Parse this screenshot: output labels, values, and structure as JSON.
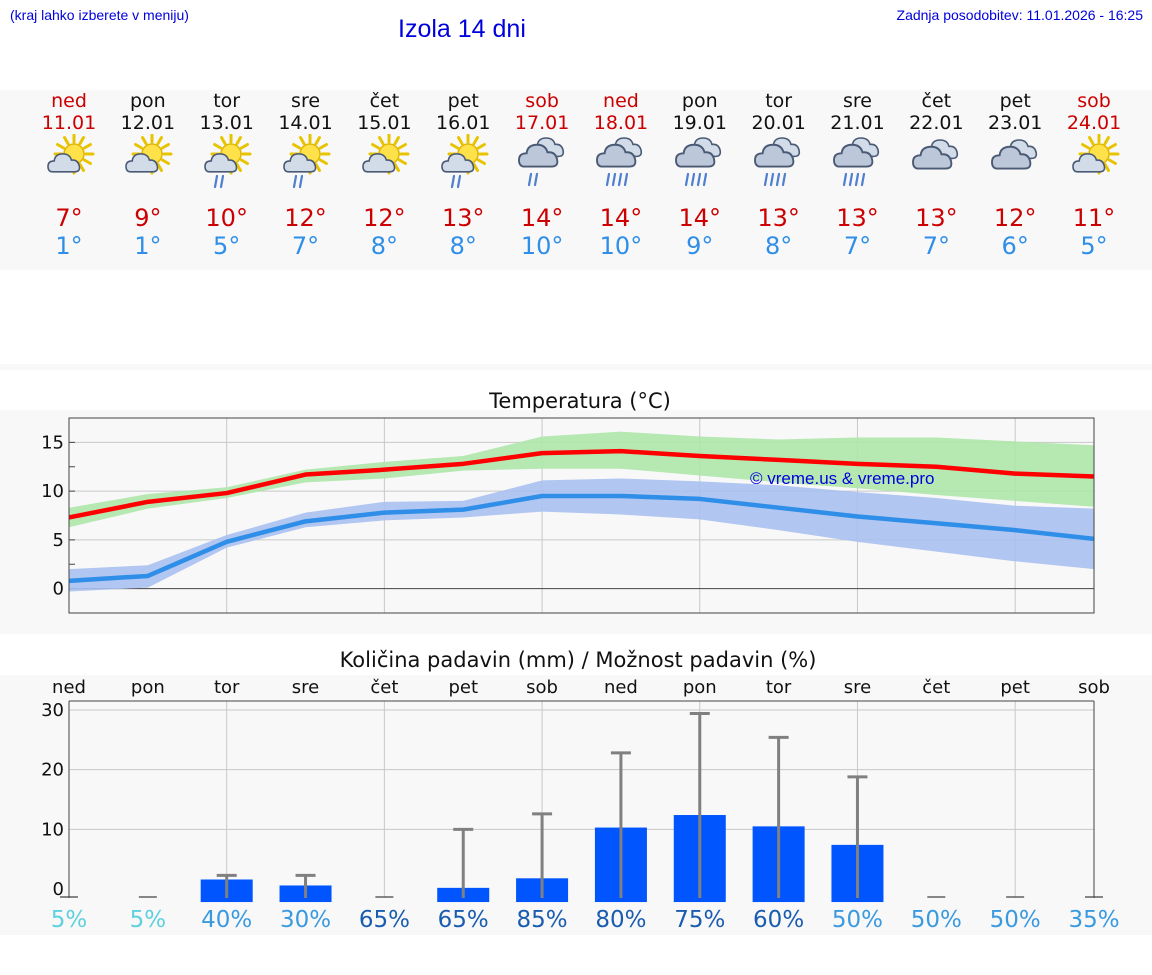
{
  "header": {
    "hint": "(kraj lahko izberete v meniju)",
    "title": "Izola 14 dni",
    "updated": "Zadnja posodobitev: 11.01.2026 - 16:25"
  },
  "colors": {
    "weekday": "#111111",
    "weekend": "#cc0000",
    "max_temp": "#ff0000",
    "min_temp": "#2e8ee8",
    "max_band": "#aee6aa",
    "min_band": "#a9c0f0",
    "precip_bar": "#0055ff",
    "error_bar": "#808080"
  },
  "days": [
    {
      "name": "ned",
      "date": "11.01",
      "weekend": true,
      "icon": "sun-cloud-icon",
      "max": "7°",
      "min": "1°"
    },
    {
      "name": "pon",
      "date": "12.01",
      "weekend": false,
      "icon": "sun-cloud-icon",
      "max": "9°",
      "min": "1°"
    },
    {
      "name": "tor",
      "date": "13.01",
      "weekend": false,
      "icon": "sun-cloud-rain-icon",
      "max": "10°",
      "min": "5°"
    },
    {
      "name": "sre",
      "date": "14.01",
      "weekend": false,
      "icon": "sun-cloud-rain-icon",
      "max": "12°",
      "min": "7°"
    },
    {
      "name": "čet",
      "date": "15.01",
      "weekend": false,
      "icon": "sun-cloud-icon",
      "max": "12°",
      "min": "8°"
    },
    {
      "name": "pet",
      "date": "16.01",
      "weekend": false,
      "icon": "sun-cloud-rain-icon",
      "max": "13°",
      "min": "8°"
    },
    {
      "name": "sob",
      "date": "17.01",
      "weekend": true,
      "icon": "cloud-rain-icon",
      "max": "14°",
      "min": "10°"
    },
    {
      "name": "ned",
      "date": "18.01",
      "weekend": true,
      "icon": "cloud-heavy-rain-icon",
      "max": "14°",
      "min": "10°"
    },
    {
      "name": "pon",
      "date": "19.01",
      "weekend": false,
      "icon": "cloud-heavy-rain-icon",
      "max": "14°",
      "min": "9°"
    },
    {
      "name": "tor",
      "date": "20.01",
      "weekend": false,
      "icon": "cloud-heavy-rain-icon",
      "max": "13°",
      "min": "8°"
    },
    {
      "name": "sre",
      "date": "21.01",
      "weekend": false,
      "icon": "cloud-heavy-rain-icon",
      "max": "13°",
      "min": "7°"
    },
    {
      "name": "čet",
      "date": "22.01",
      "weekend": false,
      "icon": "cloud-icon",
      "max": "13°",
      "min": "7°"
    },
    {
      "name": "pet",
      "date": "23.01",
      "weekend": false,
      "icon": "cloud-icon",
      "max": "12°",
      "min": "6°"
    },
    {
      "name": "sob",
      "date": "24.01",
      "weekend": true,
      "icon": "sun-cloud-icon",
      "max": "11°",
      "min": "5°"
    }
  ],
  "chart_data": [
    {
      "type": "line",
      "title": "Temperatura (°C)",
      "ylim": [
        -2.5,
        17.5
      ],
      "yticks": [
        0,
        5,
        10,
        15
      ],
      "watermark": "© vreme.us & vreme.pro",
      "x": [
        0,
        1,
        2,
        3,
        4,
        5,
        6,
        7,
        8,
        9,
        10,
        11,
        12,
        13
      ],
      "series": [
        {
          "name": "max",
          "values": [
            7.3,
            8.9,
            9.8,
            11.7,
            12.2,
            12.8,
            13.9,
            14.1,
            13.6,
            13.2,
            12.8,
            12.5,
            11.8,
            11.5
          ],
          "band_low": [
            6.3,
            8.2,
            9.3,
            10.9,
            11.3,
            12.1,
            12.3,
            12.3,
            11.6,
            10.9,
            10.3,
            9.6,
            9.0,
            8.4
          ],
          "band_high": [
            8.3,
            9.7,
            10.4,
            12.2,
            13.0,
            13.6,
            15.6,
            16.1,
            15.6,
            15.3,
            15.5,
            15.5,
            15.1,
            14.7
          ]
        },
        {
          "name": "min",
          "values": [
            0.8,
            1.3,
            4.8,
            6.9,
            7.8,
            8.1,
            9.5,
            9.5,
            9.2,
            8.3,
            7.4,
            6.7,
            6.0,
            5.1
          ],
          "band_low": [
            -0.3,
            0.1,
            4.2,
            6.3,
            7.0,
            7.3,
            7.9,
            7.6,
            7.1,
            6.0,
            4.8,
            3.8,
            2.8,
            2.0
          ],
          "band_high": [
            2.0,
            2.4,
            5.5,
            7.8,
            8.9,
            9.0,
            11.1,
            11.3,
            11.0,
            10.6,
            9.9,
            9.3,
            8.5,
            8.2
          ]
        }
      ]
    },
    {
      "type": "bar",
      "title": "Količina padavin (mm) / Možnost padavin (%)",
      "ylim": [
        -1.5,
        31.5
      ],
      "yticks": [
        0,
        10,
        20,
        30
      ],
      "categories": [
        "ned",
        "pon",
        "tor",
        "sre",
        "čet",
        "pet",
        "sob",
        "ned",
        "pon",
        "tor",
        "sre",
        "čet",
        "pet",
        "sob"
      ],
      "values": [
        0,
        0,
        1.6,
        0.6,
        0,
        0.2,
        1.8,
        10.3,
        12.4,
        10.5,
        7.4,
        0,
        0,
        0
      ],
      "error_high": [
        0,
        0,
        2.3,
        2.3,
        0,
        10.0,
        12.6,
        22.8,
        29.4,
        25.4,
        18.8,
        0,
        0,
        0
      ],
      "probability": [
        "5%",
        "5%",
        "40%",
        "30%",
        "65%",
        "65%",
        "85%",
        "80%",
        "75%",
        "60%",
        "50%",
        "50%",
        "50%",
        "35%"
      ]
    }
  ]
}
